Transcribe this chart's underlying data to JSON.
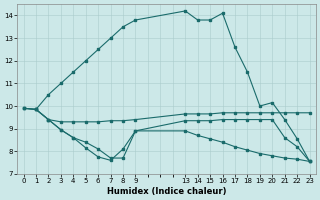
{
  "xlabel": "Humidex (Indice chaleur)",
  "background_color": "#cce8e8",
  "grid_color": "#aacccc",
  "line_color": "#1a6b6b",
  "xlim": [
    -0.5,
    23.5
  ],
  "ylim": [
    7,
    14.5
  ],
  "yticks": [
    7,
    8,
    9,
    10,
    11,
    12,
    13,
    14
  ],
  "xtick_positions": [
    0,
    1,
    2,
    3,
    4,
    5,
    6,
    7,
    8,
    9,
    13,
    14,
    15,
    16,
    17,
    18,
    19,
    20,
    21,
    22,
    23
  ],
  "xtick_labels": [
    "0",
    "1",
    "2",
    "3",
    "4",
    "5",
    "6",
    "7",
    "8",
    "9",
    "13",
    "14",
    "15",
    "16",
    "17",
    "18",
    "19",
    "20",
    "21",
    "22",
    "23"
  ],
  "line1_x": [
    0,
    1,
    2,
    3,
    4,
    5,
    6,
    7,
    8,
    9,
    13,
    14,
    15,
    16,
    17,
    18,
    19,
    20,
    21,
    22,
    23
  ],
  "line1_y": [
    9.9,
    9.85,
    10.5,
    11.0,
    11.5,
    12.0,
    12.5,
    13.0,
    13.5,
    13.8,
    14.2,
    13.8,
    13.8,
    14.1,
    12.6,
    11.5,
    10.0,
    10.15,
    9.4,
    8.55,
    7.55
  ],
  "line2_x": [
    0,
    1,
    2,
    3,
    4,
    5,
    6,
    7,
    8,
    9,
    13,
    14,
    15,
    16,
    17,
    18,
    19,
    20,
    21,
    22,
    23
  ],
  "line2_y": [
    9.9,
    9.85,
    9.4,
    9.3,
    9.3,
    9.3,
    9.3,
    9.35,
    9.35,
    9.4,
    9.65,
    9.65,
    9.65,
    9.7,
    9.7,
    9.7,
    9.7,
    9.7,
    9.7,
    9.7,
    9.7
  ],
  "line3_x": [
    1,
    2,
    3,
    4,
    5,
    6,
    7,
    8,
    9,
    13,
    14,
    15,
    16,
    17,
    18,
    19,
    20,
    21,
    22,
    23
  ],
  "line3_y": [
    9.85,
    9.4,
    8.95,
    8.6,
    8.15,
    7.75,
    7.6,
    8.1,
    8.9,
    9.35,
    9.35,
    9.35,
    9.4,
    9.4,
    9.4,
    9.4,
    9.4,
    8.6,
    8.2,
    7.55
  ],
  "line4_x": [
    0,
    1,
    2,
    3,
    4,
    5,
    6,
    7,
    8,
    9,
    13,
    14,
    15,
    16,
    17,
    18,
    19,
    20,
    21,
    22,
    23
  ],
  "line4_y": [
    9.9,
    9.85,
    9.4,
    8.95,
    8.6,
    8.4,
    8.1,
    7.7,
    7.7,
    8.9,
    8.9,
    8.7,
    8.55,
    8.4,
    8.2,
    8.05,
    7.9,
    7.8,
    7.7,
    7.65,
    7.55
  ]
}
